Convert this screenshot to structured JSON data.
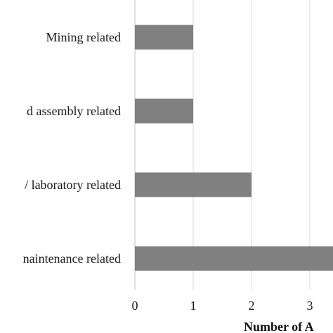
{
  "chart_data": {
    "type": "bar",
    "orientation": "horizontal",
    "categories": [
      "Mining related",
      "d assembly related",
      "/ laboratory related",
      "naintenance related"
    ],
    "values": [
      1,
      1,
      2,
      3.4
    ],
    "x_ticks": [
      0,
      1,
      2,
      3
    ],
    "xlabel": "Number of A",
    "xlim": [
      0,
      3.4
    ],
    "grid": "vertical",
    "colors": {
      "bar": "#808080",
      "grid": "#d9d9d9",
      "axis": "#bfbfbf"
    }
  }
}
